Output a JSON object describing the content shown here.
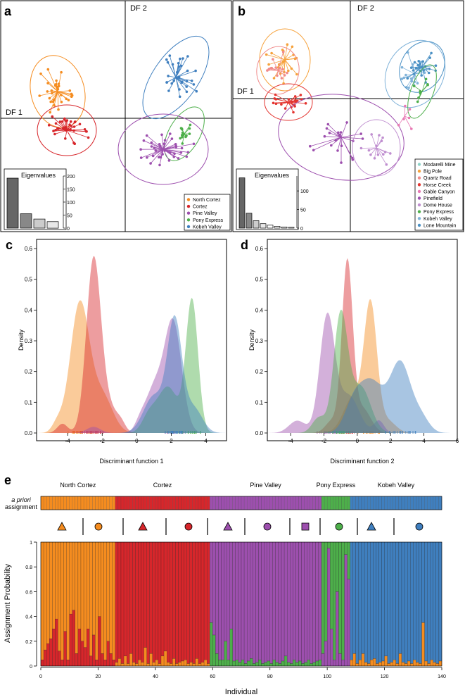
{
  "colors": {
    "north_cortez": "#f58c1f",
    "cortez": "#d7262b",
    "pine_valley": "#9d4fae",
    "pony_express": "#4daf4a",
    "kobeh_valley": "#3f7fbf",
    "modarelli_mine": "#8dd3c7",
    "big_pole": "#f6a23c",
    "quartz_road": "#f08a8a",
    "horse_creek": "#e3342f",
    "gable_canyon": "#e879b4",
    "pinefield": "#9d4fae",
    "dome_house": "#c08fd0",
    "kobeh2": "#7fb2d9",
    "lone_mountain": "#4a90c4"
  },
  "chart_data": [
    {
      "id": "a",
      "type": "scatter",
      "panel_label": "a",
      "df1_label": "DF 1",
      "df2_label": "DF 2",
      "legend": [
        "North Cortez",
        "Cortez",
        "Pine Valley",
        "Pony Express",
        "Kobeh Valley"
      ],
      "eigen_title": "Eigenvalues",
      "eigen_values": [
        192,
        55,
        35,
        25
      ],
      "eigen_ticks": [
        "0",
        "50",
        "100",
        "150",
        "200"
      ],
      "eigen_ylim": [
        0,
        200
      ]
    },
    {
      "id": "b",
      "type": "scatter",
      "panel_label": "b",
      "df1_label": "DF 1",
      "df2_label": "DF 2",
      "legend": [
        "Modarelli Mine",
        "Big Pole",
        "Quartz Road",
        "Horse Creek",
        "Gable Canyon",
        "Pinefield",
        "Dome House",
        "Pony Express",
        "Kobeh Valley",
        "Lone Mountain"
      ],
      "eigen_title": "Eigenvalues",
      "eigen_values": [
        135,
        40,
        20,
        12,
        8,
        5,
        3,
        2
      ],
      "eigen_ticks": [
        "0",
        "50",
        "100"
      ],
      "eigen_ylim": [
        0,
        140
      ]
    },
    {
      "id": "c",
      "type": "area",
      "panel_label": "c",
      "xlabel": "Discriminant function 1",
      "ylabel": "Density",
      "xlim": [
        -5.8,
        5.2
      ],
      "ylim": [
        0,
        0.63
      ],
      "xticks": [
        "-4",
        "-2",
        "0",
        "2",
        "4"
      ],
      "yticks": [
        "0.0",
        "0.1",
        "0.2",
        "0.3",
        "0.4",
        "0.5",
        "0.6"
      ],
      "series": [
        {
          "name": "North Cortez",
          "peaks": [
            [
              -3.3,
              0.42,
              0.55
            ],
            [
              -2.0,
              0.12,
              0.6
            ],
            [
              -4.6,
              0.03,
              0.3
            ]
          ]
        },
        {
          "name": "Cortez",
          "peaks": [
            [
              -2.5,
              0.56,
              0.42
            ],
            [
              -1.6,
              0.08,
              0.5
            ],
            [
              -4.3,
              0.03,
              0.3
            ],
            [
              -0.9,
              0.02,
              0.25
            ]
          ]
        },
        {
          "name": "Pine Valley",
          "peaks": [
            [
              2.1,
              0.36,
              0.5
            ],
            [
              1.0,
              0.14,
              0.5
            ],
            [
              -2.5,
              0.02,
              0.4
            ],
            [
              0.2,
              0.03,
              0.3
            ]
          ]
        },
        {
          "name": "Pony Express",
          "peaks": [
            [
              3.2,
              0.43,
              0.35
            ],
            [
              1.8,
              0.15,
              0.6
            ],
            [
              0.7,
              0.05,
              0.4
            ]
          ]
        },
        {
          "name": "Kobeh Valley",
          "peaks": [
            [
              2.2,
              0.36,
              0.42
            ],
            [
              1.0,
              0.12,
              0.6
            ],
            [
              3.3,
              0.08,
              0.5
            ]
          ]
        }
      ]
    },
    {
      "id": "d",
      "type": "area",
      "panel_label": "d",
      "xlabel": "Discriminant function 2",
      "ylabel": "Density",
      "xlim": [
        -5.4,
        6.0
      ],
      "ylim": [
        0,
        0.63
      ],
      "xticks": [
        "-4",
        "-2",
        "0",
        "2",
        "4",
        "6"
      ],
      "yticks": [
        "0.0",
        "0.1",
        "0.2",
        "0.3",
        "0.4",
        "0.5",
        "0.6"
      ],
      "series": [
        {
          "name": "North Cortez",
          "peaks": [
            [
              0.8,
              0.4,
              0.38
            ],
            [
              -0.2,
              0.12,
              0.6
            ],
            [
              1.8,
              0.04,
              0.5
            ]
          ]
        },
        {
          "name": "Cortez",
          "peaks": [
            [
              -0.6,
              0.55,
              0.32
            ],
            [
              0.3,
              0.08,
              0.5
            ],
            [
              -1.5,
              0.04,
              0.4
            ]
          ]
        },
        {
          "name": "Pine Valley",
          "peaks": [
            [
              -1.8,
              0.38,
              0.45
            ],
            [
              -0.5,
              0.12,
              0.6
            ],
            [
              -3.6,
              0.04,
              0.5
            ],
            [
              1.3,
              0.04,
              0.3
            ]
          ]
        },
        {
          "name": "Pony Express",
          "peaks": [
            [
              -1.0,
              0.38,
              0.42
            ],
            [
              0.2,
              0.15,
              0.6
            ],
            [
              -2.3,
              0.05,
              0.4
            ]
          ]
        },
        {
          "name": "Kobeh Valley",
          "peaks": [
            [
              2.6,
              0.22,
              0.6
            ],
            [
              0.8,
              0.17,
              0.8
            ],
            [
              -0.3,
              0.06,
              0.5
            ],
            [
              3.8,
              0.05,
              0.5
            ]
          ]
        }
      ]
    },
    {
      "id": "e",
      "type": "bar",
      "panel_label": "e",
      "group_labels": [
        "North Cortez",
        "Cortez",
        "Pine Valley",
        "Pony Express",
        "Kobeh Valley"
      ],
      "group_counts": [
        26,
        33,
        39,
        10,
        32
      ],
      "apriori_label_1": "a priori",
      "apriori_label_2": "assignment",
      "markers": [
        {
          "shape": "triangle",
          "pop": "North Cortez"
        },
        {
          "shape": "circle",
          "pop": "North Cortez"
        },
        {
          "shape": "triangle",
          "pop": "Cortez"
        },
        {
          "shape": "circle",
          "pop": "Cortez"
        },
        {
          "shape": "triangle",
          "pop": "Pine Valley"
        },
        {
          "shape": "circle",
          "pop": "Pine Valley"
        },
        {
          "shape": "square",
          "pop": "Pine Valley"
        },
        {
          "shape": "circle",
          "pop": "Pony Express"
        },
        {
          "shape": "triangle",
          "pop": "Kobeh Valley"
        },
        {
          "shape": "circle",
          "pop": "Kobeh Valley"
        }
      ],
      "xlabel": "Individual",
      "ylabel": "Assignment Probability",
      "xlim": [
        0,
        140
      ],
      "ylim": [
        0,
        1
      ],
      "xticks": [
        "0",
        "20",
        "40",
        "60",
        "80",
        "100",
        "120",
        "140"
      ],
      "yticks": [
        "0",
        "0.2",
        "0.4",
        "0.6",
        "0.8",
        "1"
      ],
      "other_share": [
        0.05,
        0.13,
        0.18,
        0.22,
        0.3,
        0.38,
        0.12,
        0.05,
        0.28,
        0.05,
        0.42,
        0.45,
        0.1,
        0.3,
        0.2,
        0.15,
        0.3,
        0.08,
        0.25,
        0.05,
        0.4,
        0.1,
        0.05,
        0.2,
        0.1,
        0.05,
        0.03,
        0.06,
        0.02,
        0.08,
        0.02,
        0.1,
        0.03,
        0.02,
        0.05,
        0.03,
        0.15,
        0.02,
        0.1,
        0.03,
        0.05,
        0.02,
        0.08,
        0.12,
        0.03,
        0.02,
        0.06,
        0.02,
        0.03,
        0.04,
        0.05,
        0.02,
        0.03,
        0.02,
        0.06,
        0.02,
        0.03,
        0.05,
        0.02,
        0.35,
        0.25,
        0.1,
        0.05,
        0.05,
        0.2,
        0.05,
        0.3,
        0.04,
        0.05,
        0.03,
        0.05,
        0.02,
        0.04,
        0.06,
        0.02,
        0.03,
        0.05,
        0.02,
        0.03,
        0.04,
        0.02,
        0.05,
        0.03,
        0.02,
        0.04,
        0.08,
        0.03,
        0.02,
        0.05,
        0.03,
        0.04,
        0.02,
        0.03,
        0.05,
        0.02,
        0.03,
        0.04,
        0.05,
        0.1,
        0.2,
        0.95,
        0.3,
        0.05,
        0.6,
        0.1,
        0.05,
        0.9,
        0.7,
        0.05,
        0.1,
        0.02,
        0.05,
        0.1,
        0.03,
        0.02,
        0.05,
        0.06,
        0.02,
        0.03,
        0.04,
        0.08,
        0.02,
        0.03,
        0.05,
        0.02,
        0.1,
        0.03,
        0.02,
        0.04,
        0.02,
        0.05,
        0.03,
        0.02,
        0.35,
        0.04,
        0.02,
        0.05,
        0.03,
        0.02,
        0.04
      ]
    }
  ]
}
